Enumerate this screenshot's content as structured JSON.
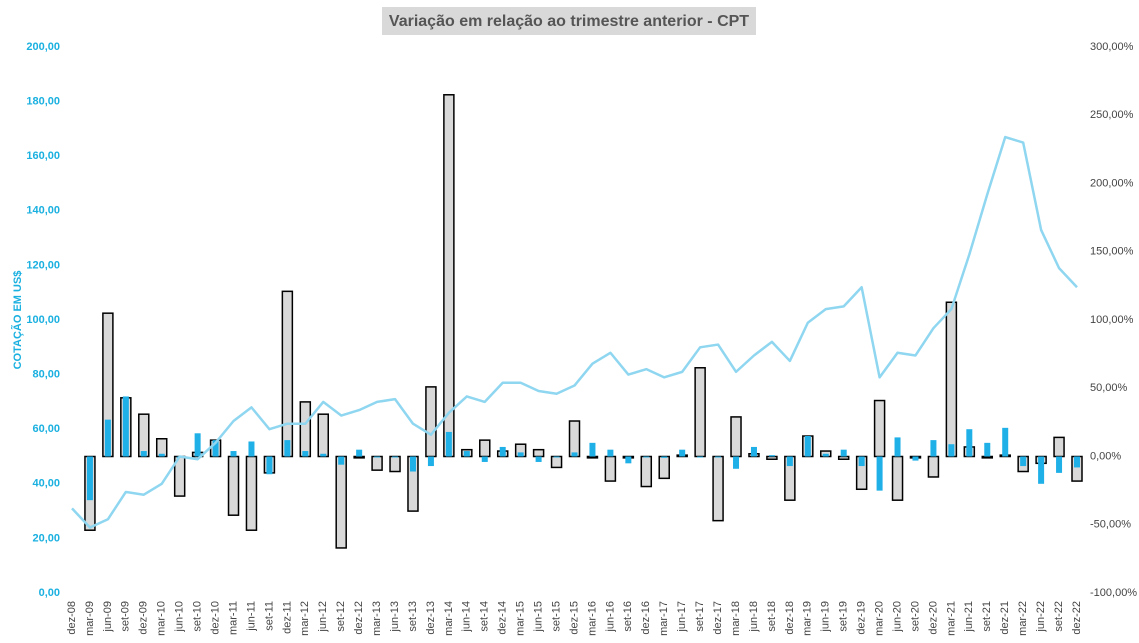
{
  "chart_data": {
    "type": "bar_line",
    "title": "Variação em relação ao trimestre anterior - CPT",
    "ylabel": "COTAÇÃO EM US$",
    "categories": [
      "dez-08",
      "mar-09",
      "jun-09",
      "set-09",
      "dez-09",
      "mar-10",
      "jun-10",
      "set-10",
      "dez-10",
      "mar-11",
      "jun-11",
      "set-11",
      "dez-11",
      "mar-12",
      "jun-12",
      "set-12",
      "dez-12",
      "mar-13",
      "jun-13",
      "set-13",
      "dez-13",
      "mar-14",
      "jun-14",
      "set-14",
      "dez-14",
      "mar-15",
      "jun-15",
      "set-15",
      "dez-15",
      "mar-16",
      "jun-16",
      "set-16",
      "dez-16",
      "mar-17",
      "jun-17",
      "set-17",
      "dez-17",
      "mar-18",
      "jun-18",
      "set-18",
      "dez-18",
      "mar-19",
      "jun-19",
      "set-19",
      "dez-19",
      "mar-20",
      "jun-20",
      "set-20",
      "dez-20",
      "mar-21",
      "jun-21",
      "set-21",
      "dez-21",
      "mar-22",
      "jun-22",
      "set-22",
      "dez-22"
    ],
    "series": [
      {
        "kind": "bar",
        "axis": "y2",
        "color": "#d9d9d9",
        "stroke": "#000000",
        "values": [
          null,
          -54,
          105,
          43,
          31,
          13,
          -29,
          3,
          12,
          -43,
          -54,
          -12,
          121,
          40,
          31,
          -67,
          -1,
          -10,
          -11,
          -40,
          51,
          265,
          5,
          12,
          4,
          9,
          5,
          -8,
          26,
          -1,
          -18,
          -1,
          -22,
          -16,
          1,
          65,
          -47,
          29,
          2,
          -2,
          -32,
          15,
          4,
          -2,
          -24,
          41,
          -32,
          -1,
          -15,
          113,
          7,
          -1,
          1,
          -11,
          -5,
          14,
          -18
        ]
      },
      {
        "kind": "bar",
        "axis": "y2",
        "color": "#1fb0e8",
        "values": [
          null,
          -32,
          27,
          44,
          4,
          2,
          -1,
          17,
          12,
          4,
          11,
          -13,
          12,
          4,
          2,
          -6,
          5,
          0,
          0,
          -11,
          -7,
          18,
          4,
          -4,
          7,
          3,
          -4,
          0,
          3,
          10,
          5,
          -5,
          0,
          -1,
          5,
          0,
          0,
          -9,
          7,
          1,
          -7,
          15,
          2,
          5,
          -7,
          -25,
          14,
          -3,
          12,
          9,
          20,
          10,
          21,
          -7,
          -20,
          -12,
          -8
        ]
      },
      {
        "kind": "line",
        "color": "#8fd6f0",
        "values": [
          31,
          24,
          27,
          37,
          36,
          40,
          50,
          49,
          55,
          63,
          68,
          60,
          62,
          62,
          70,
          65,
          67,
          70,
          71,
          62,
          58,
          66,
          72,
          70,
          77,
          77,
          74,
          73,
          76,
          84,
          88,
          80,
          82,
          79,
          81,
          90,
          91,
          81,
          87,
          92,
          85,
          99,
          104,
          105,
          112,
          79,
          88,
          87,
          97,
          104,
          124,
          146,
          167,
          165,
          133,
          119,
          112
        ]
      }
    ],
    "ylim": [
      0,
      200
    ],
    "yticks": [
      {
        "value": 0,
        "label": "0,00"
      },
      {
        "value": 20,
        "label": "20,00"
      },
      {
        "value": 40,
        "label": "40,00"
      },
      {
        "value": 60,
        "label": "60,00"
      },
      {
        "value": 80,
        "label": "80,00"
      },
      {
        "value": 100,
        "label": "100,00"
      },
      {
        "value": 120,
        "label": "120,00"
      },
      {
        "value": 140,
        "label": "140,00"
      },
      {
        "value": 160,
        "label": "160,00"
      },
      {
        "value": 180,
        "label": "180,00"
      },
      {
        "value": 200,
        "label": "200,00"
      }
    ],
    "y2lim": [
      -100,
      300
    ],
    "y2ticks": [
      {
        "value": -100,
        "label": "-100,00%"
      },
      {
        "value": -50,
        "label": "-50,00%"
      },
      {
        "value": 0,
        "label": "0,00%"
      },
      {
        "value": 50,
        "label": "50,00%"
      },
      {
        "value": 100,
        "label": "100,00%"
      },
      {
        "value": 150,
        "label": "150,00%"
      },
      {
        "value": 200,
        "label": "200,00%"
      },
      {
        "value": 250,
        "label": "250,00%"
      },
      {
        "value": 300,
        "label": "300,00%"
      }
    ]
  }
}
